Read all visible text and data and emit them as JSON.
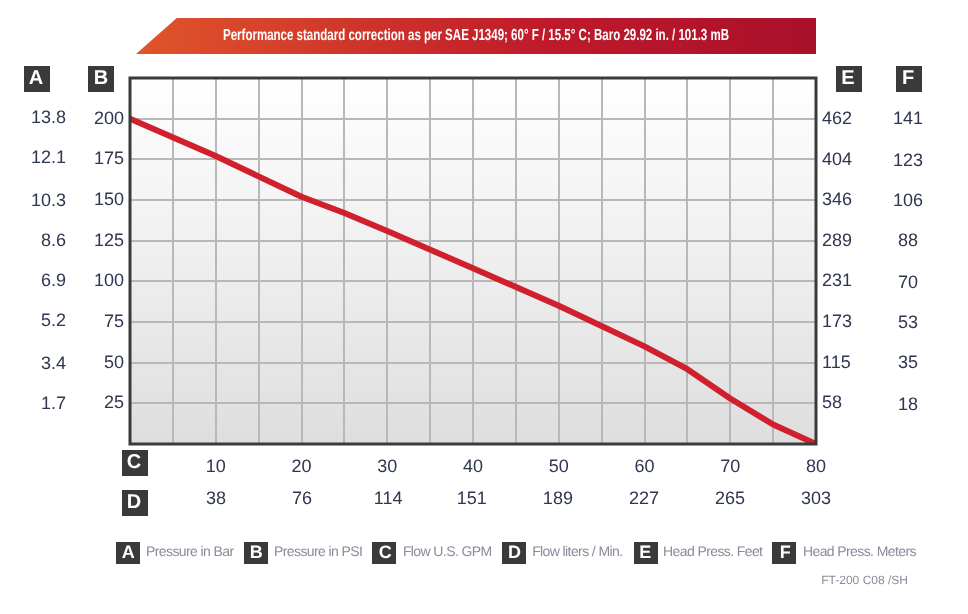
{
  "chart_data": {
    "type": "line",
    "title": "Performance standard correction as per SAE J1349;  60° F / 15.5° C;  Baro 29.92 in. / 101.3 mB",
    "xlabel": "C",
    "x2label": "D",
    "ylabel": "B",
    "y2label": "A",
    "y3label": "E",
    "series": [
      {
        "color": "#d0202e",
        "x": [
          0,
          10,
          20,
          25,
          30,
          40,
          50,
          60,
          65,
          70,
          75,
          80
        ],
        "values": [
          200,
          177,
          152,
          142,
          131,
          108,
          85,
          60,
          46,
          28,
          12,
          0
        ]
      }
    ],
    "xlim": [
      0,
      80
    ],
    "xticks": [
      {
        "value": 5,
        "label": null
      },
      10,
      {
        "value": 15,
        "label": null
      },
      20,
      {
        "value": 25,
        "label": null
      },
      30,
      {
        "value": 35,
        "label": null
      },
      40,
      {
        "value": 45,
        "label": null
      },
      50,
      {
        "value": 55,
        "label": null
      },
      60,
      {
        "value": 65,
        "label": null
      },
      70,
      {
        "value": 75,
        "label": null
      },
      80
    ],
    "x2lim": [
      0,
      303
    ],
    "x2ticks": [
      38,
      76,
      114,
      151,
      189,
      227,
      265,
      303
    ],
    "ylim": [
      0,
      225
    ],
    "yticks": [
      25,
      50,
      75,
      100,
      125,
      150,
      175,
      200
    ],
    "y2lim": [
      0,
      15.5
    ],
    "y2ticks": [
      1.7,
      3.4,
      5.2,
      6.9,
      8.6,
      10.3,
      12.1,
      13.8
    ],
    "y3lim": [
      0,
      520
    ],
    "y3ticks": [
      58,
      115,
      173,
      231,
      289,
      346,
      404,
      462
    ],
    "grid": true,
    "legend": false,
    "marker": "none",
    "line_style": "solid",
    "annotations": [
      "Pressure in Bar",
      "Pressure in PSI",
      "Flow U.S. GPM",
      "Flow liters / Min.",
      "Head Press. Feet",
      "Head Press. Meters",
      "FT-200 C08 /SH",
      "F",
      "141",
      "123",
      "106",
      "88",
      "70",
      "53",
      "35",
      "18"
    ]
  }
}
